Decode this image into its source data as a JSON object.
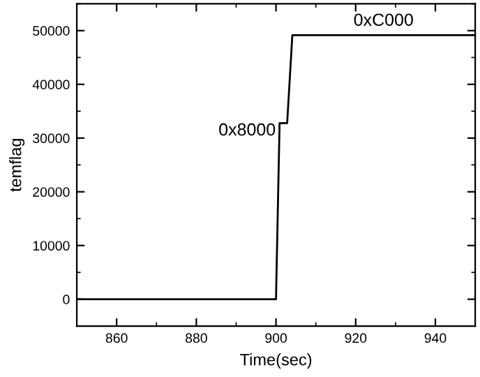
{
  "chart_data": {
    "type": "line",
    "xlabel": "Time(sec)",
    "ylabel": "temflag",
    "x": [
      850,
      900,
      900.9,
      902.8,
      904.1,
      950
    ],
    "series": [
      {
        "color": "#000000",
        "values": [
          0,
          0,
          32768,
          32768,
          49152,
          49152
        ]
      }
    ],
    "xlim": [
      850,
      950
    ],
    "xticks": [
      860,
      880,
      900,
      920,
      940
    ],
    "ylim": [
      -5000,
      55000
    ],
    "yticks": [
      0,
      10000,
      20000,
      30000,
      40000,
      50000
    ],
    "grid": false,
    "legend": false,
    "marker": "none",
    "line_style": "solid",
    "annotations": [
      {
        "text": "0x8000",
        "x": 900.9,
        "y": 32768
      },
      {
        "text": "0xC000",
        "x": 927,
        "y": 49152
      }
    ]
  }
}
